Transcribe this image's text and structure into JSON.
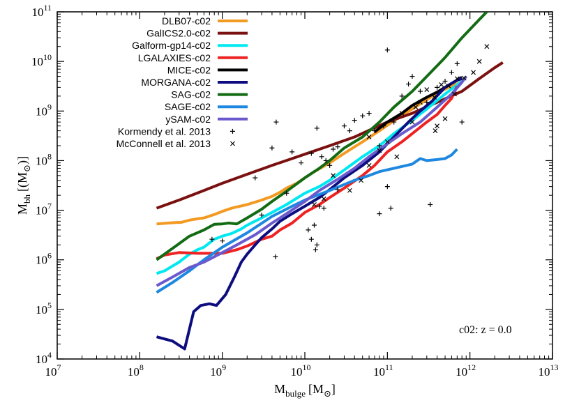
{
  "chart_data": {
    "type": "line",
    "title": "",
    "xlabel": {
      "main": "M",
      "sub": "bulge",
      "unit": "[M",
      "unit_sub": "⊙",
      "unit_end": "]"
    },
    "ylabel": {
      "main": "M",
      "sub": "bh",
      "unit": "[(M",
      "unit_sub": "⊙",
      "unit_end": ")]"
    },
    "x_scale": "log",
    "y_scale": "log",
    "xlim": [
      10000000.0,
      10000000000000.0
    ],
    "ylim": [
      10000.0,
      100000000000.0
    ],
    "x_ticks": [
      {
        "value": 10000000.0,
        "base": "10",
        "exp": "7"
      },
      {
        "value": 100000000.0,
        "base": "10",
        "exp": "8"
      },
      {
        "value": 1000000000.0,
        "base": "10",
        "exp": "9"
      },
      {
        "value": 10000000000.0,
        "base": "10",
        "exp": "10"
      },
      {
        "value": 100000000000.0,
        "base": "10",
        "exp": "11"
      },
      {
        "value": 1000000000000.0,
        "base": "10",
        "exp": "12"
      },
      {
        "value": 10000000000000.0,
        "base": "10",
        "exp": "13"
      }
    ],
    "y_ticks": [
      {
        "value": 10000.0,
        "base": "10",
        "exp": "4"
      },
      {
        "value": 100000.0,
        "base": "10",
        "exp": "5"
      },
      {
        "value": 1000000.0,
        "base": "10",
        "exp": "6"
      },
      {
        "value": 10000000.0,
        "base": "10",
        "exp": "7"
      },
      {
        "value": 100000000.0,
        "base": "10",
        "exp": "8"
      },
      {
        "value": 1000000000.0,
        "base": "10",
        "exp": "9"
      },
      {
        "value": 10000000000.0,
        "base": "10",
        "exp": "10"
      },
      {
        "value": 100000000000.0,
        "base": "10",
        "exp": "11"
      }
    ],
    "grid": false,
    "legend_position": "top-left",
    "annotation": "c02: z = 0.0",
    "series": [
      {
        "name": "DLB07-c02",
        "color": "#f39a22",
        "style": "line",
        "x": [
          160000000.0,
          250000000.0,
          320000000.0,
          400000000.0,
          500000000.0,
          600000000.0,
          800000000.0,
          1000000000.0,
          1300000000.0,
          2000000000.0,
          3000000000.0,
          4000000000.0,
          5000000000.0,
          6000000000.0,
          8000000000.0,
          10000000000.0,
          13000000000.0,
          20000000000.0,
          30000000000.0,
          50000000000.0,
          80000000000.0,
          130000000000.0,
          200000000000.0,
          300000000000.0,
          400000000000.0,
          600000000000.0,
          750000000000.0
        ],
        "y": [
          5300000.0,
          5600000.0,
          5700000.0,
          6300000.0,
          6700000.0,
          7000000.0,
          8200000.0,
          9500000.0,
          11000000.0,
          13000000.0,
          16000000.0,
          19000000.0,
          23000000.0,
          28000000.0,
          35000000.0,
          45000000.0,
          60000000.0,
          90000000.0,
          140000000.0,
          240000000.0,
          400000000.0,
          700000000.0,
          1100000000.0,
          1700000000.0,
          2300000000.0,
          3200000000.0,
          4500000000.0
        ]
      },
      {
        "name": "GalICS2.0-c02",
        "color": "#7b1010",
        "style": "line",
        "x": [
          160000000.0,
          300000000.0,
          600000000.0,
          1000000000.0,
          2000000000.0,
          4000000000.0,
          7000000000.0,
          10000000000.0,
          20000000000.0,
          40000000000.0,
          70000000000.0,
          100000000000.0,
          200000000000.0,
          400000000000.0,
          800000000000.0,
          1300000000000.0,
          2000000000000.0,
          2500000000000.0
        ],
        "y": [
          11000000.0,
          16000000.0,
          25000000.0,
          35000000.0,
          53000000.0,
          80000000.0,
          110000000.0,
          135000000.0,
          200000000.0,
          300000000.0,
          460000000.0,
          600000000.0,
          900000000.0,
          1500000000.0,
          2500000000.0,
          4500000000.0,
          7500000000.0,
          9500000000.0
        ]
      },
      {
        "name": "Galform-gp14-c02",
        "color": "#00e8f0",
        "style": "line",
        "x": [
          160000000.0,
          200000000.0,
          250000000.0,
          300000000.0,
          350000000.0,
          400000000.0,
          500000000.0,
          600000000.0,
          700000000.0,
          800000000.0,
          1000000000.0,
          1300000000.0,
          1700000000.0,
          2000000000.0,
          3000000000.0,
          4000000000.0,
          6000000000.0,
          10000000000.0,
          15000000000.0,
          20000000000.0,
          30000000000.0,
          50000000000.0,
          80000000000.0,
          120000000000.0,
          200000000000.0,
          300000000000.0,
          500000000000.0,
          800000000000.0
        ],
        "y": [
          530000.0,
          600000.0,
          750000.0,
          900000.0,
          1100000.0,
          1300000.0,
          1600000.0,
          1800000.0,
          2200000.0,
          2600000.0,
          3000000.0,
          3400000.0,
          4200000.0,
          5000000.0,
          7000000.0,
          9000000.0,
          13000000.0,
          22000000.0,
          30000000.0,
          40000000.0,
          65000000.0,
          120000000.0,
          200000000.0,
          350000000.0,
          650000000.0,
          1100000000.0,
          2200000000.0,
          4000000000.0
        ]
      },
      {
        "name": "LGALAXIES-c02",
        "color": "#ee2222",
        "style": "line",
        "x": [
          160000000.0,
          200000000.0,
          300000000.0,
          500000000.0,
          700000000.0,
          1000000000.0,
          1500000000.0,
          2000000000.0,
          3000000000.0,
          4000000000.0,
          5000000000.0,
          7000000000.0,
          10000000000.0,
          15000000000.0,
          20000000000.0,
          30000000000.0,
          50000000000.0,
          70000000000.0,
          100000000000.0,
          150000000000.0,
          200000000000.0,
          300000000000.0,
          400000000000.0,
          500000000000.0,
          600000000000.0,
          700000000000.0
        ],
        "y": [
          1050000.0,
          1250000.0,
          1400000.0,
          1350000.0,
          1350000.0,
          1350000.0,
          1600000.0,
          1900000.0,
          2600000.0,
          3000000.0,
          4000000.0,
          5500000.0,
          9000000.0,
          13000000.0,
          18000000.0,
          28000000.0,
          50000000.0,
          80000000.0,
          150000000.0,
          240000000.0,
          350000000.0,
          600000000.0,
          850000000.0,
          1300000000.0,
          1800000000.0,
          3200000000.0
        ]
      },
      {
        "name": "MICE-c02",
        "color": "#000000",
        "style": "line",
        "x": [
          70000000000.0,
          100000000000.0,
          150000000000.0,
          200000000000.0,
          300000000000.0,
          400000000000.0,
          500000000000.0,
          600000000000.0,
          700000000000.0,
          800000000000.0
        ],
        "y": [
          380000000.0,
          600000000.0,
          900000000.0,
          1300000000.0,
          1900000000.0,
          2400000000.0,
          3000000000.0,
          3600000000.0,
          4200000000.0,
          4800000000.0
        ]
      },
      {
        "name": "MORGANA-c02",
        "color": "#0d0d80",
        "style": "line",
        "x": [
          160000000.0,
          250000000.0,
          350000000.0,
          450000000.0,
          550000000.0,
          700000000.0,
          850000000.0,
          1100000000.0,
          1400000000.0,
          1700000000.0,
          2000000000.0,
          2500000000.0,
          3000000000.0,
          4000000000.0,
          5000000000.0,
          7000000000.0,
          10000000000.0,
          15000000000.0,
          20000000000.0,
          30000000000.0,
          50000000000.0,
          80000000000.0,
          120000000000.0,
          180000000000.0,
          250000000000.0,
          350000000000.0,
          500000000000.0,
          700000000000.0,
          800000000000.0
        ],
        "y": [
          28000.0,
          23000.0,
          16000.0,
          90000.0,
          120000.0,
          130000.0,
          120000.0,
          200000.0,
          450000.0,
          900000.0,
          1300000.0,
          2000000.0,
          2800000.0,
          4200000.0,
          6000000.0,
          8500000.0,
          12000000.0,
          18000000.0,
          26000000.0,
          45000000.0,
          80000000.0,
          150000000.0,
          300000000.0,
          600000000.0,
          1000000000.0,
          1600000000.0,
          3000000000.0,
          4200000000.0,
          4500000000.0
        ]
      },
      {
        "name": "SAG-c02",
        "color": "#136b13",
        "style": "line",
        "x": [
          160000000.0,
          250000000.0,
          400000000.0,
          600000000.0,
          800000000.0,
          1000000000.0,
          1200000000.0,
          1500000000.0,
          2000000000.0,
          3000000000.0,
          4000000000.0,
          6000000000.0,
          10000000000.0,
          15000000000.0,
          20000000000.0,
          30000000000.0,
          50000000000.0,
          80000000000.0,
          120000000000.0,
          200000000000.0,
          300000000000.0,
          500000000000.0,
          800000000000.0,
          1300000000000.0,
          1600000000000.0
        ],
        "y": [
          1000000.0,
          1700000.0,
          3000000.0,
          4000000.0,
          5200000.0,
          5300000.0,
          5500000.0,
          5300000.0,
          7000000.0,
          10500000.0,
          15000000.0,
          24000000.0,
          45000000.0,
          70000000.0,
          100000000.0,
          180000000.0,
          300000000.0,
          600000000.0,
          1200000000.0,
          2500000000.0,
          5000000000.0,
          12000000000.0,
          30000000000.0,
          70000000000.0,
          100000000000.0
        ]
      },
      {
        "name": "SAGE-c02",
        "color": "#1e88e0",
        "style": "line",
        "x": [
          160000000.0,
          250000000.0,
          400000000.0,
          600000000.0,
          1000000000.0,
          2000000000.0,
          4000000000.0,
          7000000000.0,
          10000000000.0,
          20000000000.0,
          40000000000.0,
          60000000000.0,
          80000000000.0,
          120000000000.0,
          200000000000.0,
          250000000000.0,
          300000000000.0,
          400000000000.0,
          500000000000.0,
          600000000000.0,
          700000000000.0
        ],
        "y": [
          220000.0,
          350000.0,
          600000.0,
          1000000.0,
          1800000.0,
          3500000.0,
          7500000.0,
          12000000.0,
          16000000.0,
          25000000.0,
          40000000.0,
          50000000.0,
          60000000.0,
          70000000.0,
          85000000.0,
          110000000.0,
          100000000.0,
          105000000.0,
          110000000.0,
          130000000.0,
          170000000.0
        ]
      },
      {
        "name": "ySAM-c02",
        "color": "#6a5acd",
        "style": "line",
        "x": [
          160000000.0,
          250000000.0,
          400000000.0,
          600000000.0,
          1000000000.0,
          1500000000.0,
          2500000000.0,
          4000000000.0,
          6000000000.0,
          10000000000.0,
          15000000000.0,
          25000000000.0,
          40000000000.0,
          60000000000.0,
          100000000000.0,
          150000000000.0,
          250000000000.0,
          400000000000.0,
          600000000000.0,
          800000000000.0,
          900000000000.0
        ],
        "y": [
          300000.0,
          450000.0,
          700000.0,
          900000.0,
          1400000.0,
          2000000.0,
          3200000.0,
          5500000.0,
          8500000.0,
          15000000.0,
          25000000.0,
          42000000.0,
          70000000.0,
          120000000.0,
          220000000.0,
          350000000.0,
          600000000.0,
          1200000000.0,
          2200000000.0,
          3800000000.0,
          5000000000.0
        ]
      },
      {
        "name": "Kormendy et al. 2013",
        "color": "#000000",
        "style": "plus",
        "x": [
          4500000000.0,
          2500000000.0,
          750000000.0,
          1000000000.0,
          3000000000.0,
          6000000000.0,
          4000000000.0,
          7000000000.0,
          9000000000.0,
          12000000000.0,
          14000000000.0,
          16000000000.0,
          18000000000.0,
          20000000000.0,
          22000000000.0,
          25000000000.0,
          30000000000.0,
          35000000000.0,
          40000000000.0,
          50000000000.0,
          60000000000.0,
          70000000000.0,
          80000000000.0,
          90000000000.0,
          100000000000.0,
          120000000000.0,
          150000000000.0,
          180000000000.0,
          200000000000.0,
          250000000000.0,
          300000000000.0,
          400000000000.0,
          500000000000.0,
          600000000000.0,
          700000000000.0,
          800000000000.0,
          100000000000.0,
          13000000000.0,
          11000000000.0,
          15000000000.0,
          17000000000.0,
          25000000000.0,
          80000000000.0,
          110000000000.0,
          330000000000.0,
          13500000000.0,
          4400000000.0,
          14000000000.0,
          12000000000.0
        ],
        "y": [
          600000000.0,
          45000000.0,
          2600000.0,
          2400000.0,
          8000000.0,
          22000000.0,
          180000000.0,
          150000000.0,
          90000000.0,
          140000000.0,
          450000000.0,
          120000000.0,
          100000000.0,
          80000000.0,
          170000000.0,
          190000000.0,
          500000000.0,
          400000000.0,
          650000000.0,
          800000000.0,
          900000000.0,
          400000000.0,
          200000000.0,
          500000000.0,
          17000000000.0,
          600000000.0,
          2000000000.0,
          3500000000.0,
          5000000000.0,
          2500000000.0,
          1500000000.0,
          3000000000.0,
          4000000000.0,
          6000000000.0,
          9000000000.0,
          600000000.0,
          30000000.0,
          5000000.0,
          4000000.0,
          12000000.0,
          11000000.0,
          26000000.0,
          8500000.0,
          11000000.0,
          13000000.0,
          1600000.0,
          1150000.0,
          2000000.0,
          2600000.0
        ]
      },
      {
        "name": "McConnell et al. 2013",
        "color": "#000000",
        "style": "cross",
        "x": [
          17000000000.0,
          35000000000.0,
          60000000000.0,
          100000000000.0,
          150000000000.0,
          220000000000.0,
          300000000000.0,
          370000000000.0,
          450000000000.0,
          550000000000.0,
          650000000000.0,
          850000000000.0,
          1100000000000.0,
          1300000000000.0,
          1600000000000.0,
          700000000000.0,
          500000000000.0,
          400000000000.0,
          380000000000.0,
          250000000000.0,
          130000000000.0,
          48000000000.0,
          22000000000.0,
          13000000000.0,
          80000000000.0,
          200000000000.0,
          60000000000.0
        ],
        "y": [
          17000000.0,
          25000000.0,
          80000000.0,
          240000000.0,
          900000000.0,
          1200000000.0,
          2700000000.0,
          1900000000.0,
          3400000000.0,
          3200000000.0,
          2200000000.0,
          4600000000.0,
          6000000000.0,
          10000000000.0,
          20000000000.0,
          4500000000.0,
          700000000.0,
          500000000.0,
          400000000.0,
          1500000000.0,
          120000000.0,
          40000000.0,
          50000000.0,
          13000000.0,
          160000000.0,
          600000000.0,
          300000000.0
        ]
      }
    ]
  }
}
